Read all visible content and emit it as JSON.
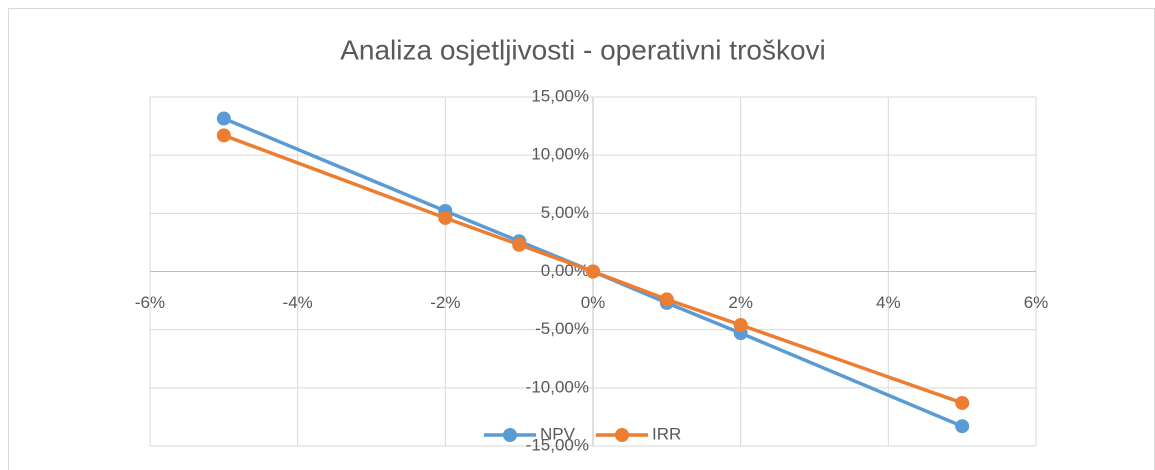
{
  "chart_data": {
    "type": "scatter",
    "title": "Analiza osjetljivosti - operativni troškovi",
    "x": [
      -5,
      -2,
      -1,
      0,
      1,
      2,
      5
    ],
    "series": [
      {
        "name": "NPV",
        "color": "#5b9bd5",
        "values": [
          13.15,
          5.2,
          2.6,
          0,
          -2.7,
          -5.3,
          -13.3
        ]
      },
      {
        "name": "IRR",
        "color": "#ed7d31",
        "values": [
          11.7,
          4.6,
          2.3,
          0,
          -2.4,
          -4.6,
          -11.3
        ]
      }
    ],
    "xlim": [
      -6,
      6
    ],
    "xticks": [
      {
        "value": -6,
        "label": "-6%"
      },
      {
        "value": -4,
        "label": "-4%"
      },
      {
        "value": -2,
        "label": "-2%"
      },
      {
        "value": 0,
        "label": "0%"
      },
      {
        "value": 2,
        "label": "2%"
      },
      {
        "value": 4,
        "label": "4%"
      },
      {
        "value": 6,
        "label": "6%"
      }
    ],
    "ylim": [
      -15,
      15
    ],
    "yticks": [
      {
        "value": -15,
        "label": "-15,00%"
      },
      {
        "value": -10,
        "label": "-10,00%"
      },
      {
        "value": -5,
        "label": "-5,00%"
      },
      {
        "value": 0,
        "label": "0,00%"
      },
      {
        "value": 5,
        "label": "5,00%"
      },
      {
        "value": 10,
        "label": "10,00%"
      },
      {
        "value": 15,
        "label": "15,00%"
      }
    ],
    "grid": true,
    "legend": "bottom"
  }
}
